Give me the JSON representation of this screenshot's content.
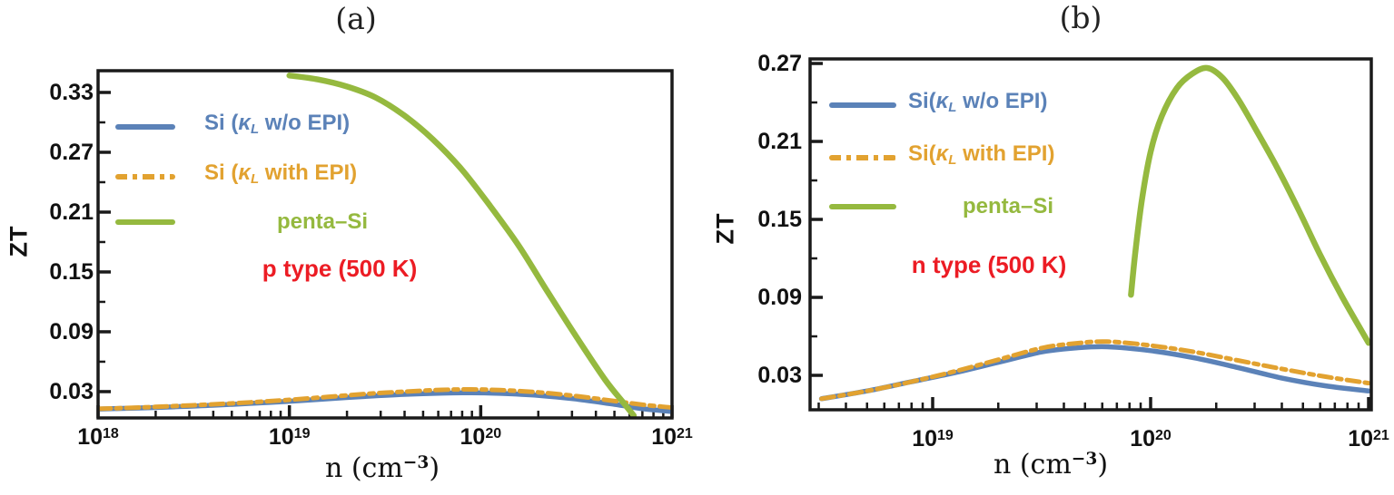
{
  "figure": {
    "panels": [
      {
        "title": "(a)",
        "ylabel": "ZT",
        "xlabel_pre": "n (cm",
        "xlabel_sup": "−3",
        "xlabel_post": ")",
        "type_label": "p type (500 K)",
        "legend": [
          {
            "pre": "Si (",
            "kappa": "κ",
            "sub": "L",
            "post": " w/o EPI)"
          },
          {
            "pre": "Si (",
            "kappa": "κ",
            "sub": "L",
            "post": " with EPI)"
          },
          {
            "pre": "penta–Si",
            "kappa": "",
            "sub": "",
            "post": ""
          }
        ]
      },
      {
        "title": "(b)",
        "ylabel": "ZT",
        "xlabel_pre": "n (cm",
        "xlabel_sup": "−3",
        "xlabel_post": ")",
        "type_label": "n type (500 K)",
        "legend": [
          {
            "pre": "Si(",
            "kappa": "κ",
            "sub": "L",
            "post": " w/o EPI)"
          },
          {
            "pre": "Si(",
            "kappa": "κ",
            "sub": "L",
            "post": " with EPI)"
          },
          {
            "pre": "penta–Si",
            "kappa": "",
            "sub": "",
            "post": ""
          }
        ]
      }
    ],
    "colors": {
      "si_wo_epi": "#5b82b8",
      "si_with_epi": "#e2a230",
      "penta_si": "#95b93f",
      "type_label": "#ec1c24",
      "axis": "#1a1a1a"
    }
  },
  "chart_data": [
    {
      "type": "line",
      "title": "(a)",
      "xlabel": "n (cm^-3)",
      "ylabel": "ZT",
      "x_scale": "log10",
      "xlim_log10": [
        18,
        21
      ],
      "ylim": [
        0,
        0.352
      ],
      "x_tick_exponents": [
        18,
        19,
        20,
        21
      ],
      "y_ticks": [
        {
          "v": 0.03,
          "label": "0.03"
        },
        {
          "v": 0.09,
          "label": "0.09"
        },
        {
          "v": 0.15,
          "label": "0.15"
        },
        {
          "v": 0.21,
          "label": "0.21"
        },
        {
          "v": 0.27,
          "label": "0.27"
        },
        {
          "v": 0.33,
          "label": "0.33"
        }
      ],
      "y_minor_ticks": [
        0.06,
        0.12,
        0.18,
        0.24,
        0.3
      ],
      "grid": false,
      "legend_position": "upper-left-inside",
      "annotation": "p type (500 K)",
      "series": [
        {
          "key": "si_wo_epi",
          "name": "Si (κL w/o EPI)",
          "color": "#5b82b8",
          "line_style": "solid",
          "points_log10n_zt": [
            [
              18.0,
              0.0125
            ],
            [
              18.2,
              0.0135
            ],
            [
              18.4,
              0.0148
            ],
            [
              18.6,
              0.0163
            ],
            [
              18.8,
              0.0182
            ],
            [
              19.0,
              0.0203
            ],
            [
              19.2,
              0.0228
            ],
            [
              19.4,
              0.0252
            ],
            [
              19.6,
              0.0272
            ],
            [
              19.8,
              0.0285
            ],
            [
              19.95,
              0.0288
            ],
            [
              20.1,
              0.0282
            ],
            [
              20.3,
              0.0262
            ],
            [
              20.5,
              0.0225
            ],
            [
              20.7,
              0.0172
            ],
            [
              20.85,
              0.0128
            ],
            [
              21.0,
              0.01
            ]
          ]
        },
        {
          "key": "si_with_epi",
          "name": "Si (κL with EPI)",
          "color": "#e2a230",
          "line_style": "dash-dot",
          "points_log10n_zt": [
            [
              18.0,
              0.0128
            ],
            [
              18.2,
              0.014
            ],
            [
              18.4,
              0.0155
            ],
            [
              18.6,
              0.0172
            ],
            [
              18.8,
              0.0193
            ],
            [
              19.0,
              0.0218
            ],
            [
              19.2,
              0.0247
            ],
            [
              19.4,
              0.0277
            ],
            [
              19.6,
              0.03
            ],
            [
              19.8,
              0.0318
            ],
            [
              19.95,
              0.0322
            ],
            [
              20.1,
              0.0315
            ],
            [
              20.3,
              0.0293
            ],
            [
              20.5,
              0.0255
            ],
            [
              20.7,
              0.0205
            ],
            [
              20.85,
              0.0168
            ],
            [
              21.0,
              0.014
            ]
          ]
        },
        {
          "key": "penta_si",
          "name": "penta–Si",
          "color": "#95b93f",
          "line_style": "solid",
          "points_log10n_zt": [
            [
              19.0,
              0.347
            ],
            [
              19.15,
              0.343
            ],
            [
              19.3,
              0.336
            ],
            [
              19.45,
              0.325
            ],
            [
              19.6,
              0.307
            ],
            [
              19.75,
              0.283
            ],
            [
              19.9,
              0.253
            ],
            [
              20.05,
              0.216
            ],
            [
              20.2,
              0.176
            ],
            [
              20.35,
              0.13
            ],
            [
              20.5,
              0.085
            ],
            [
              20.65,
              0.042
            ],
            [
              20.75,
              0.018
            ],
            [
              20.8,
              0.006
            ]
          ]
        }
      ]
    },
    {
      "type": "line",
      "title": "(b)",
      "xlabel": "n (cm^-3)",
      "ylabel": "ZT",
      "x_scale": "log10",
      "xlim_log10": [
        18.4375,
        21.0125
      ],
      "ylim": [
        0,
        0.2735
      ],
      "x_tick_exponents": [
        19,
        20,
        21
      ],
      "y_ticks": [
        {
          "v": 0.03,
          "label": "0.03"
        },
        {
          "v": 0.09,
          "label": "0.09"
        },
        {
          "v": 0.15,
          "label": "0.15"
        },
        {
          "v": 0.21,
          "label": "0.21"
        },
        {
          "v": 0.27,
          "label": "0.27"
        }
      ],
      "y_minor_ticks": [
        0.06,
        0.12,
        0.18,
        0.24
      ],
      "grid": false,
      "legend_position": "upper-left-inside",
      "annotation": "n type (500 K)",
      "series": [
        {
          "key": "si_wo_epi",
          "name": "Si(κL w/o EPI)",
          "color": "#5b82b8",
          "line_style": "solid",
          "points_log10n_zt": [
            [
              18.49,
              0.012
            ],
            [
              18.7,
              0.018
            ],
            [
              18.9,
              0.025
            ],
            [
              19.1,
              0.032
            ],
            [
              19.3,
              0.04
            ],
            [
              19.5,
              0.048
            ],
            [
              19.65,
              0.051
            ],
            [
              19.8,
              0.052
            ],
            [
              20.0,
              0.049
            ],
            [
              20.2,
              0.0435
            ],
            [
              20.4,
              0.036
            ],
            [
              20.6,
              0.028
            ],
            [
              20.8,
              0.022
            ],
            [
              21.0,
              0.018
            ]
          ]
        },
        {
          "key": "si_with_epi",
          "name": "Si(κL with EPI)",
          "color": "#e2a230",
          "line_style": "dash-dot",
          "points_log10n_zt": [
            [
              18.49,
              0.012
            ],
            [
              18.7,
              0.018
            ],
            [
              18.9,
              0.025
            ],
            [
              19.1,
              0.033
            ],
            [
              19.3,
              0.042
            ],
            [
              19.5,
              0.051
            ],
            [
              19.65,
              0.0545
            ],
            [
              19.8,
              0.056
            ],
            [
              20.0,
              0.053
            ],
            [
              20.2,
              0.048
            ],
            [
              20.4,
              0.0415
            ],
            [
              20.6,
              0.035
            ],
            [
              20.8,
              0.029
            ],
            [
              21.0,
              0.024
            ]
          ]
        },
        {
          "key": "penta_si",
          "name": "penta–Si",
          "color": "#95b93f",
          "line_style": "solid",
          "points_log10n_zt": [
            [
              19.91,
              0.092
            ],
            [
              19.93,
              0.125
            ],
            [
              19.96,
              0.165
            ],
            [
              20.0,
              0.202
            ],
            [
              20.05,
              0.229
            ],
            [
              20.12,
              0.251
            ],
            [
              20.19,
              0.262
            ],
            [
              20.26,
              0.2665
            ],
            [
              20.33,
              0.259
            ],
            [
              20.4,
              0.243
            ],
            [
              20.48,
              0.22
            ],
            [
              20.58,
              0.19
            ],
            [
              20.68,
              0.157
            ],
            [
              20.78,
              0.122
            ],
            [
              20.88,
              0.09
            ],
            [
              21.0,
              0.055
            ]
          ]
        }
      ]
    }
  ]
}
